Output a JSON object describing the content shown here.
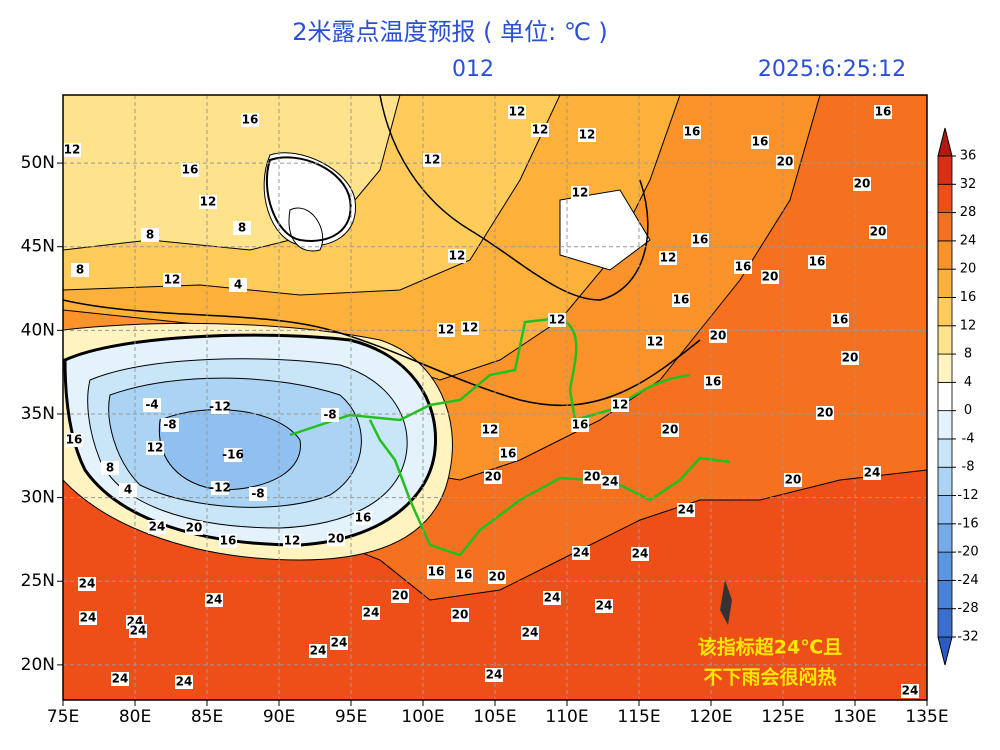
{
  "map": {
    "title": "2米露点温度预报 ( 单位: ℃ )",
    "forecast_hour": "012",
    "valid_time": "2025:6:25:12",
    "lonlim": [
      75,
      135
    ],
    "latlim": [
      17.9,
      54.07
    ],
    "lonticks": [
      {
        "value": 75,
        "label": "75E"
      },
      {
        "value": 80,
        "label": "80E"
      },
      {
        "value": 85,
        "label": "85E"
      },
      {
        "value": 90,
        "label": "90E"
      },
      {
        "value": 95,
        "label": "95E"
      },
      {
        "value": 100,
        "label": "100E"
      },
      {
        "value": 105,
        "label": "105E"
      },
      {
        "value": 110,
        "label": "110E"
      },
      {
        "value": 115,
        "label": "115E"
      },
      {
        "value": 120,
        "label": "120E"
      },
      {
        "value": 125,
        "label": "125E"
      },
      {
        "value": 130,
        "label": "130E"
      },
      {
        "value": 135,
        "label": "135E"
      }
    ],
    "latticks": [
      {
        "value": 20,
        "label": "20N"
      },
      {
        "value": 25,
        "label": "25N"
      },
      {
        "value": 30,
        "label": "30N"
      },
      {
        "value": 35,
        "label": "35N"
      },
      {
        "value": 40,
        "label": "40N"
      },
      {
        "value": 45,
        "label": "45N"
      },
      {
        "value": 50,
        "label": "50N"
      }
    ],
    "grid": true,
    "colorbar": {
      "levels": [
        -32,
        -28,
        -24,
        -20,
        -16,
        -12,
        -8,
        -4,
        0,
        4,
        8,
        12,
        16,
        20,
        24,
        28,
        32,
        36
      ],
      "colors": [
        "#2b5cc4",
        "#3a6fd0",
        "#4a82d8",
        "#5b96e0",
        "#74abe8",
        "#8fc0ef",
        "#abd4f4",
        "#c8e6f8",
        "#e4f3fb",
        "#ffffff",
        "#fff3c0",
        "#ffe38c",
        "#ffcc5c",
        "#fdb03a",
        "#fb922a",
        "#f5701f",
        "#ee4f19",
        "#d92f14",
        "#b21a0d"
      ]
    },
    "contour_labels": [
      "16",
      "12",
      "16",
      "12",
      "8",
      "8",
      "12",
      "8",
      "4",
      "12",
      "12",
      "12",
      "16",
      "16",
      "16",
      "20",
      "20",
      "20",
      "12",
      "12",
      "12",
      "16",
      "12",
      "16",
      "20",
      "16",
      "16",
      "16",
      "20",
      "20",
      "16",
      "20",
      "12",
      "12",
      "12",
      "12",
      "12",
      "16",
      "20",
      "-12",
      "-8",
      "-4",
      "-8",
      "12",
      "-16",
      "-12",
      "-8",
      "16",
      "8",
      "4",
      "24",
      "20",
      "16",
      "12",
      "20",
      "16",
      "16",
      "20",
      "20",
      "24",
      "20",
      "24",
      "24",
      "24",
      "24",
      "16",
      "16",
      "20",
      "24",
      "24",
      "24",
      "24",
      "24",
      "24",
      "20",
      "20",
      "24",
      "24",
      "24",
      "24",
      "24",
      "24",
      "24",
      "24",
      "24",
      "12"
    ],
    "annotation": [
      "该指标超24℃且",
      "不下雨会很闷热"
    ]
  }
}
